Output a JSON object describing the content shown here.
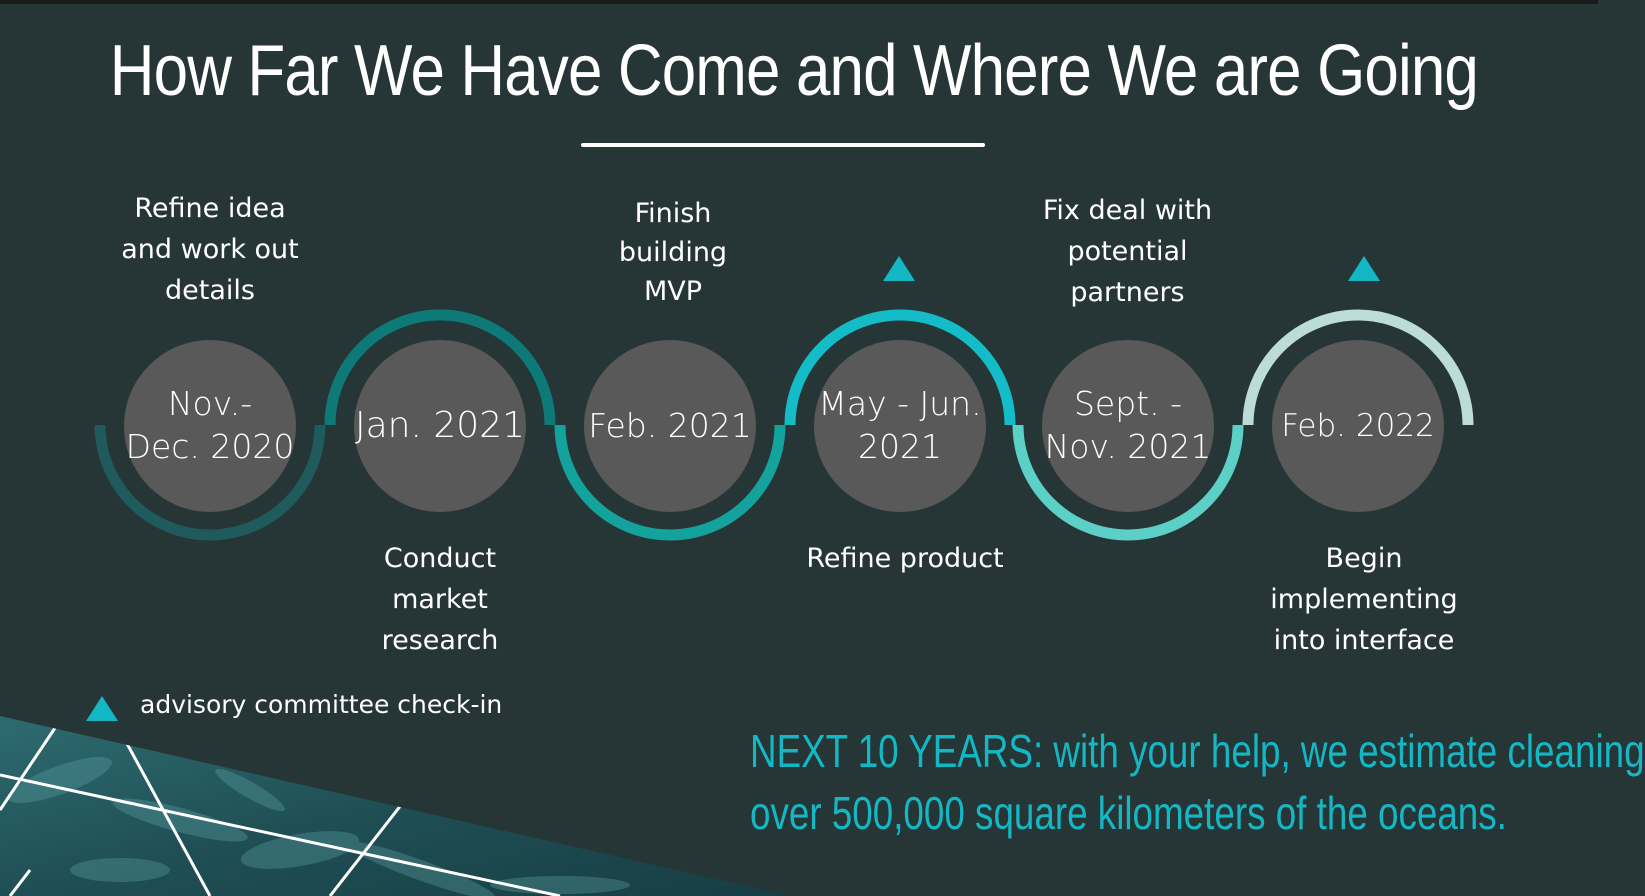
{
  "title": "How Far We Have Come and Where We are Going",
  "timeline": [
    {
      "date": "Nov.-\nDec. 2020",
      "label": "Refine idea\nand work out\ndetails"
    },
    {
      "date": "Jan. 2021",
      "label": "Conduct\n market\nresearch"
    },
    {
      "date": "Feb. 2021",
      "label": "Finish\nbuilding\nMVP"
    },
    {
      "date": "May - Jun.\n2021",
      "label": "Refine  product"
    },
    {
      "date": "Sept. -\nNov. 2021",
      "label": "Fix deal with\npotential\npartners"
    },
    {
      "date": "Feb. 2022",
      "label": "Begin\nimplementing\ninto interface"
    }
  ],
  "legend": {
    "icon": "triangle-icon",
    "text": "advisory committee check-in"
  },
  "footer": {
    "line1": "NEXT 10 YEARS: with your help, we estimate cleaning",
    "line2": "over 500,000 square kilometers of the oceans."
  },
  "colors": {
    "background": "#263536",
    "circle": "#595959",
    "accent": "#14b8c4",
    "arcs": [
      "#1f5a5c",
      "#0e7a78",
      "#13a39c",
      "#14bcc8",
      "#5ccfc6",
      "#bcdcd8"
    ]
  }
}
